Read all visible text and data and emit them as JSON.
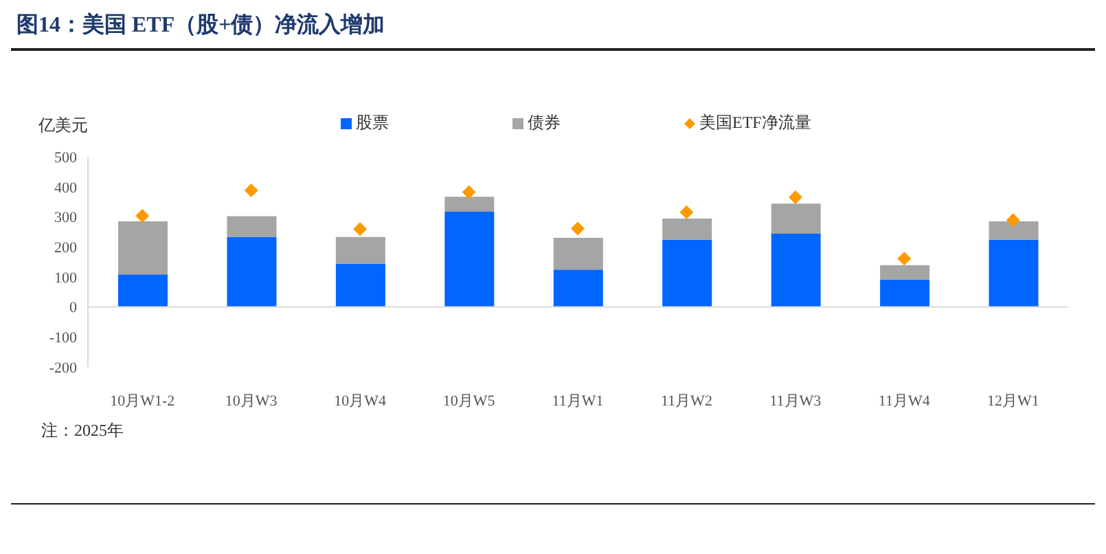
{
  "chart_data": {
    "type": "bar",
    "title": "图14：美国 ETF（股+债）净流入增加",
    "ylabel": "亿美元",
    "annotations": [
      "注：2025年"
    ],
    "categories": [
      "10月W1-2",
      "10月W3",
      "10月W4",
      "10月W5",
      "11月W1",
      "11月W2",
      "11月W3",
      "11月W4",
      "12月W1"
    ],
    "stacked": true,
    "series": [
      {
        "name": "股票",
        "color": "#0066ff",
        "values": [
          108,
          233,
          144,
          317,
          124,
          224,
          244,
          91,
          224
        ]
      },
      {
        "name": "债券",
        "color": "#a5a5a5",
        "values": [
          177,
          69,
          89,
          50,
          106,
          70,
          100,
          48,
          61
        ]
      },
      {
        "name": "美国ETF净流量",
        "type": "scatter",
        "marker": "diamond",
        "color": "#ff9900",
        "values": [
          303,
          388,
          259,
          382,
          261,
          315,
          365,
          161,
          289
        ]
      }
    ],
    "ylim": [
      -200,
      500
    ],
    "yticks": [
      -200,
      -100,
      0,
      100,
      200,
      300,
      400,
      500
    ],
    "legend": "top"
  }
}
